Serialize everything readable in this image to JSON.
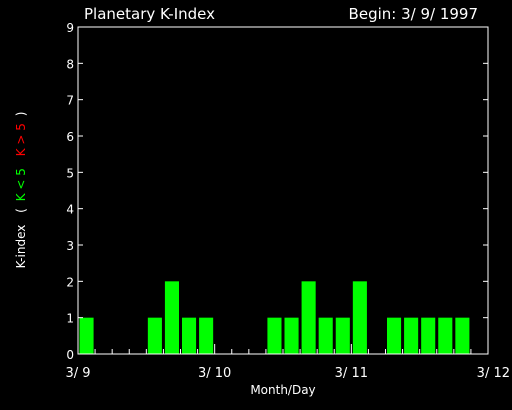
{
  "chart_data": {
    "type": "bar",
    "title": "Planetary K-Index",
    "subtitle": "Begin: 3/ 9/ 1997",
    "xlabel": "Month/Day",
    "ylabel_parts": {
      "main": "K-index",
      "open": "(",
      "low": "K < 5",
      "high": "K > 5",
      "close": ")"
    },
    "ylim": [
      0,
      9
    ],
    "yticks": [
      "0",
      "1",
      "2",
      "3",
      "4",
      "5",
      "6",
      "7",
      "8",
      "9"
    ],
    "xticks": [
      "3/ 9",
      "3/ 10",
      "3/ 11",
      "3/ 12"
    ],
    "intervals_per_day": 8,
    "days": 3,
    "values": [
      1,
      0,
      0,
      0,
      1,
      2,
      1,
      1,
      0,
      0,
      0,
      1,
      1,
      2,
      1,
      1,
      2,
      0,
      1,
      1,
      1,
      1,
      1,
      0
    ],
    "threshold": 5,
    "colors": {
      "low": "#00ff00",
      "high": "#ff0000",
      "axis": "#ffffff"
    },
    "grid": false
  }
}
